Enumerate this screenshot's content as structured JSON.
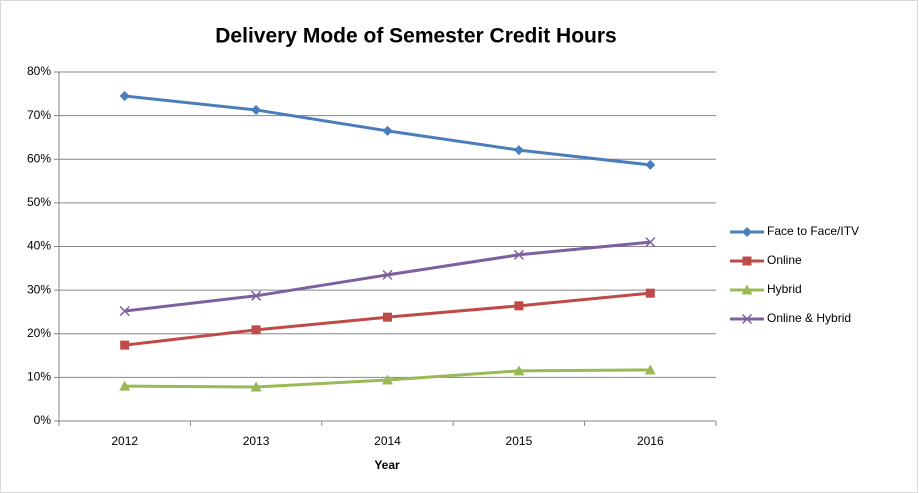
{
  "chart_data": {
    "type": "line",
    "title": "Delivery Mode of Semester Credit Hours",
    "x_label": "Year",
    "categories": [
      "2012",
      "2013",
      "2014",
      "2015",
      "2016"
    ],
    "series": [
      {
        "name": "Face to Face/ITV",
        "color": "#4a7ebb",
        "marker": "diamond",
        "values": [
          74.5,
          71.3,
          66.5,
          62.1,
          58.7
        ]
      },
      {
        "name": "Online",
        "color": "#be4b48",
        "marker": "square",
        "values": [
          17.4,
          20.9,
          23.8,
          26.4,
          29.3
        ]
      },
      {
        "name": "Hybrid",
        "color": "#98b954",
        "marker": "triangle",
        "values": [
          8.0,
          7.8,
          9.4,
          11.5,
          11.7
        ]
      },
      {
        "name": "Online & Hybrid",
        "color": "#7d60a0",
        "marker": "x",
        "values": [
          25.2,
          28.7,
          33.5,
          38.1,
          41.0
        ]
      }
    ],
    "ylim": [
      0,
      80
    ],
    "yticks": [
      {
        "value": 0,
        "label": "0%"
      },
      {
        "value": 10,
        "label": "10%"
      },
      {
        "value": 20,
        "label": "20%"
      },
      {
        "value": 30,
        "label": "30%"
      },
      {
        "value": 40,
        "label": "40%"
      },
      {
        "value": 50,
        "label": "50%"
      },
      {
        "value": 60,
        "label": "60%"
      },
      {
        "value": 70,
        "label": "70%"
      },
      {
        "value": 80,
        "label": "80%"
      }
    ],
    "grid": true,
    "legend": "right"
  }
}
